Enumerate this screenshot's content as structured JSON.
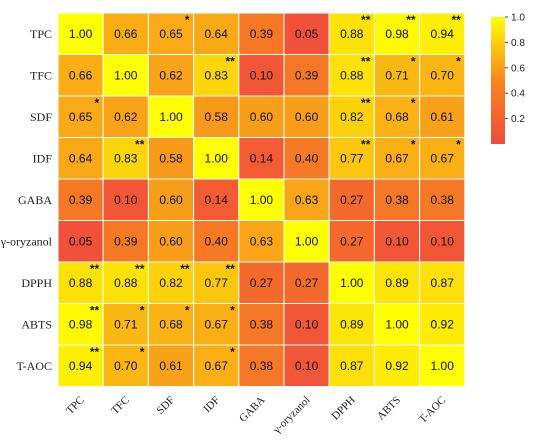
{
  "chart_data": {
    "type": "heatmap",
    "title": "",
    "xlabel": "",
    "ylabel": "",
    "rows": [
      "TPC",
      "TFC",
      "SDF",
      "IDF",
      "GABA",
      "γ-oryzanol",
      "DPPH",
      "ABTS",
      "T-AOC"
    ],
    "cols": [
      "TPC",
      "TFC",
      "SDF",
      "IDF",
      "GABA",
      "γ-oryzanol",
      "DPPH",
      "ABTS",
      "T-AOC"
    ],
    "values": [
      [
        1.0,
        0.66,
        0.65,
        0.64,
        0.39,
        0.05,
        0.88,
        0.98,
        0.94
      ],
      [
        0.66,
        1.0,
        0.62,
        0.83,
        0.1,
        0.39,
        0.88,
        0.71,
        0.7
      ],
      [
        0.65,
        0.62,
        1.0,
        0.58,
        0.6,
        0.6,
        0.82,
        0.68,
        0.61
      ],
      [
        0.64,
        0.83,
        0.58,
        1.0,
        0.14,
        0.4,
        0.77,
        0.67,
        0.67
      ],
      [
        0.39,
        0.1,
        0.6,
        0.14,
        1.0,
        0.63,
        0.27,
        0.38,
        0.38
      ],
      [
        0.05,
        0.39,
        0.6,
        0.4,
        0.63,
        1.0,
        0.27,
        0.1,
        0.1
      ],
      [
        0.88,
        0.88,
        0.82,
        0.77,
        0.27,
        0.27,
        1.0,
        0.89,
        0.87
      ],
      [
        0.98,
        0.71,
        0.68,
        0.67,
        0.38,
        0.1,
        0.89,
        1.0,
        0.92
      ],
      [
        0.94,
        0.7,
        0.61,
        0.67,
        0.38,
        0.1,
        0.87,
        0.92,
        1.0
      ]
    ],
    "labels": [
      [
        "1.00",
        "0.66",
        "0.65",
        "0.64",
        "0.39",
        "0.05",
        "0.88",
        "0.98",
        "0.94"
      ],
      [
        "0.66",
        "1.00",
        "0.62",
        "0.83",
        "0.10",
        "0.39",
        "0.88",
        "0.71",
        "0.70"
      ],
      [
        "0.65",
        "0.62",
        "1.00",
        "0.58",
        "0.60",
        "0.60",
        "0.82",
        "0.68",
        "0.61"
      ],
      [
        "0.64",
        "0.83",
        "0.58",
        "1.00",
        "0.14",
        "0.40",
        "0.77",
        "0.67",
        "0.67"
      ],
      [
        "0.39",
        "0.10",
        "0.60",
        "0.14",
        "1.00",
        "0.63",
        "0.27",
        "0.38",
        "0.38"
      ],
      [
        "0.05",
        "0.39",
        "0.60",
        "0.40",
        "0.63",
        "1.00",
        "0.27",
        "0.10",
        "0.10"
      ],
      [
        "0.88",
        "0.88",
        "0.82",
        "0.77",
        "0.27",
        "0.27",
        "1.00",
        "0.89",
        "0.87"
      ],
      [
        "0.98",
        "0.71",
        "0.68",
        "0.67",
        "0.38",
        "0.10",
        "0.89",
        "1.00",
        "0.92"
      ],
      [
        "0.94",
        "0.70",
        "0.61",
        "0.67",
        "0.38",
        "0.10",
        "0.87",
        "0.92",
        "1.00"
      ]
    ],
    "significance": [
      [
        "",
        "",
        "*",
        "",
        "",
        "",
        "**",
        "**",
        "**"
      ],
      [
        "",
        "",
        "",
        "**",
        "",
        "",
        "**",
        "*",
        "*"
      ],
      [
        "*",
        "",
        "",
        "",
        "",
        "",
        "**",
        "*",
        ""
      ],
      [
        "",
        "**",
        "",
        "",
        "",
        "",
        "**",
        "*",
        "*"
      ],
      [
        "",
        "",
        "",
        "",
        "",
        "",
        "",
        "",
        ""
      ],
      [
        "",
        "",
        "",
        "",
        "",
        "",
        "",
        "",
        ""
      ],
      [
        "**",
        "**",
        "**",
        "**",
        "",
        "",
        "",
        "",
        ""
      ],
      [
        "**",
        "*",
        "*",
        "*",
        "",
        "",
        "",
        "",
        ""
      ],
      [
        "**",
        "*",
        "",
        "*",
        "",
        "",
        "",
        "",
        ""
      ]
    ],
    "colorscale": {
      "min": 0.0,
      "max": 1.0,
      "low_color": "#f04a3c",
      "mid_color": "#f7861f",
      "high_color": "#ffff00"
    },
    "legend": {
      "position": "top-right",
      "range": [
        0,
        1
      ],
      "ticks": [
        "1.0",
        "0.8",
        "0.6",
        "0.4",
        "0.2"
      ],
      "tick_values": [
        1.0,
        0.8,
        0.6,
        0.4,
        0.2
      ]
    }
  }
}
